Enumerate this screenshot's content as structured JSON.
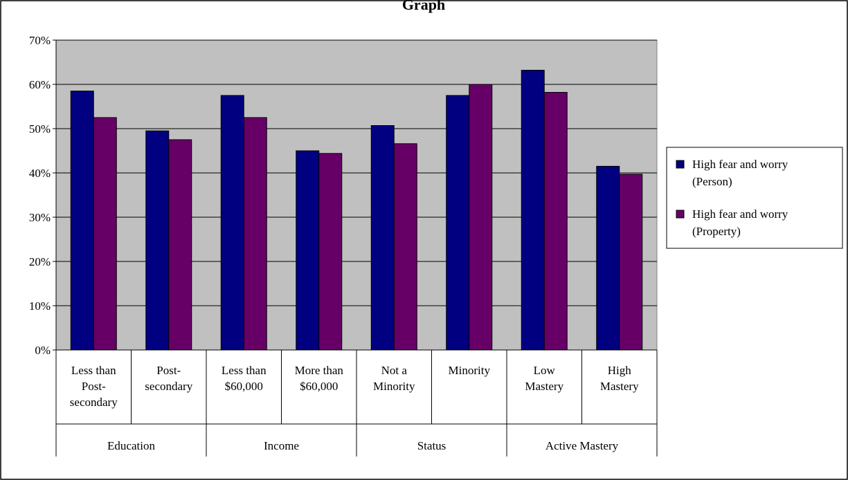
{
  "chart_data": {
    "type": "bar",
    "title": "Graph",
    "categories": [
      [
        "Less than",
        "Post-",
        "secondary"
      ],
      [
        "Post-",
        "secondary"
      ],
      [
        "Less than",
        "$60,000"
      ],
      [
        "More than",
        "$60,000"
      ],
      [
        "Not a",
        "Minority"
      ],
      [
        "Minority"
      ],
      [
        "Low",
        "Mastery"
      ],
      [
        "High",
        "Mastery"
      ]
    ],
    "groups": [
      "Education",
      "Income",
      "Status",
      "Active Mastery"
    ],
    "series": [
      {
        "name": [
          "High fear and worry",
          "(Person)"
        ],
        "color": "#000080",
        "values": [
          58.5,
          49.5,
          57.5,
          45.0,
          50.7,
          57.5,
          63.2,
          41.5
        ]
      },
      {
        "name": [
          "High fear and worry",
          "(Property)"
        ],
        "color": "#660066",
        "values": [
          52.5,
          47.5,
          52.5,
          44.4,
          46.6,
          60.0,
          58.2,
          39.7
        ]
      }
    ],
    "yticks": [
      "0%",
      "10%",
      "20%",
      "30%",
      "40%",
      "50%",
      "60%",
      "70%"
    ],
    "ylim": [
      0,
      70
    ],
    "grid": true,
    "legend_position": "right",
    "plot_background": "#c0c0c0"
  }
}
